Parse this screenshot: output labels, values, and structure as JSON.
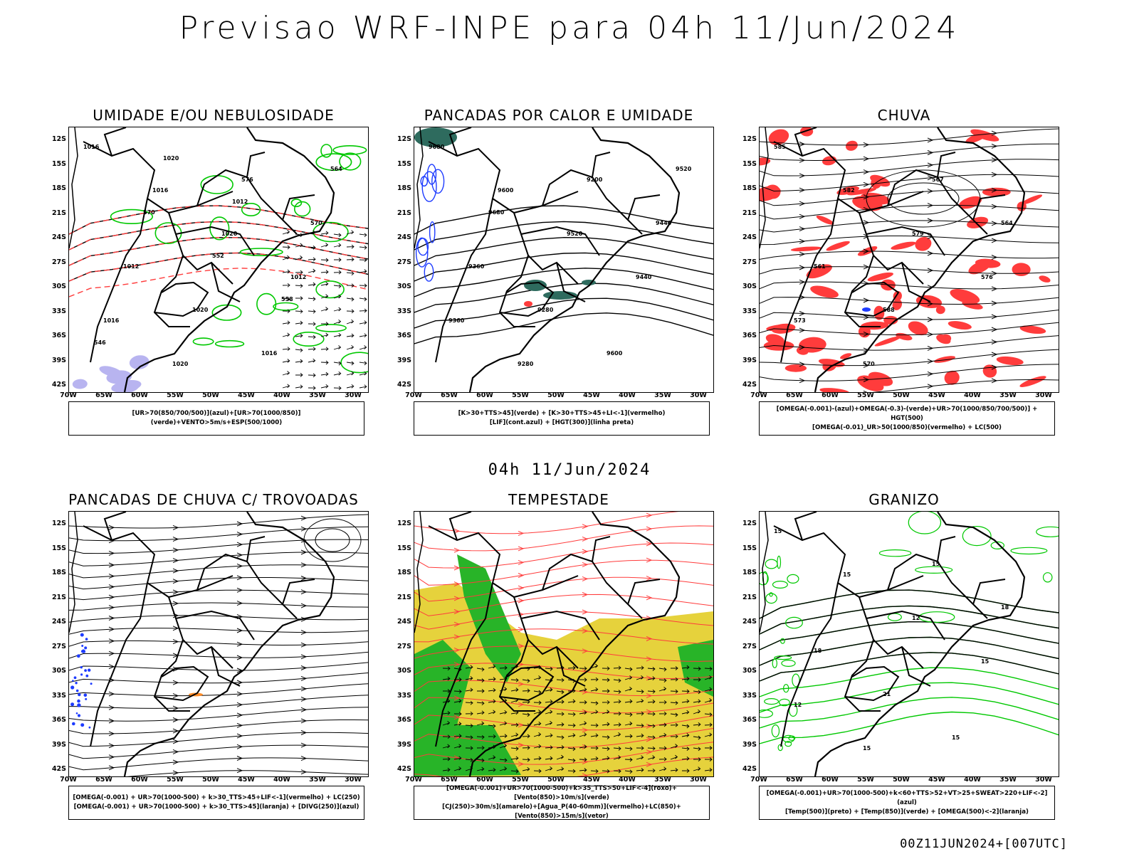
{
  "title": "Previsao WRF-INPE  para 04h 11/Jun/2024",
  "mid_title": "04h 11/Jun/2024",
  "footer": "00Z11JUN2024+[007UTC]",
  "axes": {
    "lat_labels": [
      "12S",
      "15S",
      "18S",
      "21S",
      "24S",
      "27S",
      "30S",
      "33S",
      "36S",
      "39S",
      "42S"
    ],
    "lon_labels": [
      "70W",
      "65W",
      "60W",
      "55W",
      "50W",
      "45W",
      "40W",
      "35W",
      "30W"
    ]
  },
  "panels": [
    {
      "title": "UMIDADE E/OU NEBULOSIDADE",
      "legend": [
        "[UR>70(850/700/500)](azul)+[UR>70(1000/850)](verde)+VENTO>5m/s+ESP(500/1000)"
      ],
      "contour_labels": [
        "1016",
        "1016",
        "1020",
        "1012",
        "1016",
        "1020",
        "576",
        "570",
        "1012",
        "1020",
        "1016",
        "564",
        "570",
        "552",
        "558",
        "546",
        "1020",
        "1012"
      ],
      "colors": {
        "fill_blue": "#b8b4f0",
        "line_green": "#00c800",
        "line_red": "#ff3c3c",
        "line_black": "#000000"
      }
    },
    {
      "title": "PANCADAS POR CALOR E UMIDADE",
      "legend": [
        "[K>30+TTS>45](verde) + [K>30+TTS>45+LI<-1](vermelho)",
        "[LIF](cont.azul) + [HGT(300)](linha preta)"
      ],
      "contour_labels": [
        "9680",
        "9600",
        "9520",
        "9440",
        "9360",
        "9280",
        "9200",
        "9440",
        "9360",
        "9280",
        "9600",
        "9520",
        "9680"
      ],
      "colors": {
        "fill_green": "#2e6b5e",
        "fill_red": "#ff3c3c",
        "line_blue": "#1e3cff",
        "line_black": "#000000"
      }
    },
    {
      "title": "CHUVA",
      "legend": [
        "[OMEGA(-0.001)-(azul)+OMEGA(-0.3)-(verde)+UR>70(1000/850/700/500)] + HGT(500)",
        "[OMEGA(-0.01)_UR>50(1000/850)(vermelho) + LC(500)"
      ],
      "contour_labels": [
        "585",
        "582",
        "579",
        "576",
        "573",
        "570",
        "567",
        "564",
        "561",
        "588"
      ],
      "colors": {
        "fill_red": "#ff3c3c",
        "fill_blue": "#1e3cff",
        "line_black": "#000000"
      }
    },
    {
      "title": "PANCADAS DE CHUVA C/ TROVOADAS",
      "legend": [
        "[OMEGA(-0.001) + UR>70(1000-500) + k>30_TTS>45+LIF<-1](vermelho) + LC(250)",
        "[OMEGA(-0.001) + UR>70(1000-500) + k>30_TTS>45](laranja) + [DIVG(250)](azul)"
      ],
      "contour_labels": [],
      "colors": {
        "fill_blue": "#1e3cff",
        "fill_orange": "#ff8c28",
        "line_black": "#000000"
      }
    },
    {
      "title": "TEMPESTADE",
      "legend": [
        "[OMEGA(-0.001)+UR>70(1000-500)+k>35_TTS>50+LIF<-4](roxo)+[Vento(850)>10m/s](verde)",
        "[CJ(250)>30m/s](amarelo)+[Agua_P(40-60mm)](vermelho)+LC(850)+[Vento(850)>15m/s](vetor)"
      ],
      "contour_labels": [],
      "colors": {
        "fill_yellow": "#e6d23c",
        "fill_green": "#28b428",
        "line_red": "#ff3c3c",
        "line_black": "#000000"
      }
    },
    {
      "title": "GRANIZO",
      "legend": [
        "[OMEGA(-0.001)+UR>70(1000-500)+k<60+TTS>52+VT>25+SWEAT>220+LIF<-2](azul)",
        "[Temp(500)](preto) + [Temp(850)](verde) + [OMEGA(500)<-2](laranja)"
      ],
      "contour_labels": [
        "15",
        "15",
        "12",
        "15",
        "12",
        "15",
        "15",
        "18",
        "18",
        "21",
        "15"
      ],
      "colors": {
        "line_green": "#00c800",
        "line_black": "#000000",
        "fill_orange": "#ff8c28"
      }
    }
  ]
}
